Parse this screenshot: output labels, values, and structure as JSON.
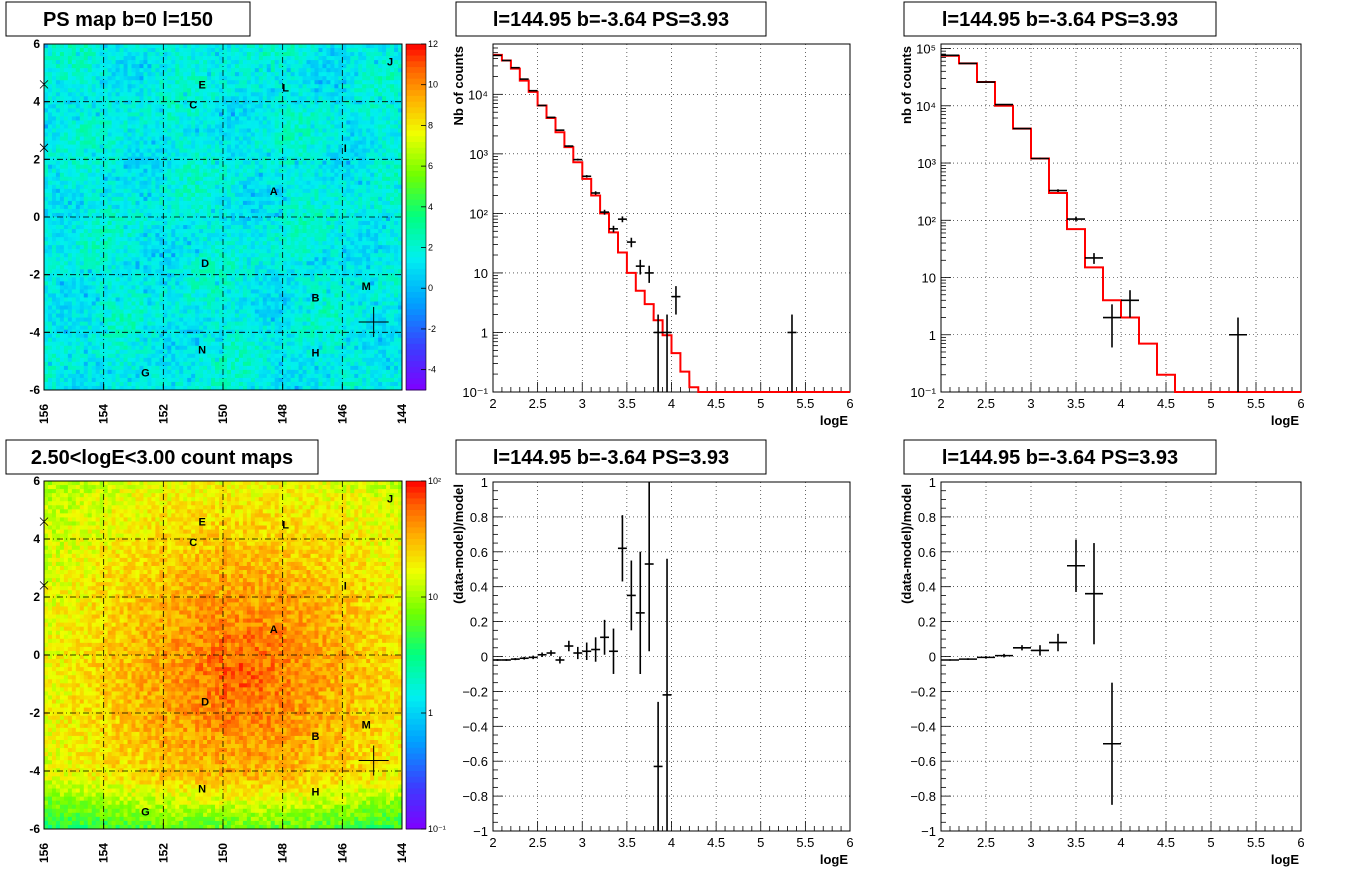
{
  "chart_data": [
    {
      "type": "heatmap",
      "title": "PS map b=0 l=150",
      "xlim": [
        156,
        144
      ],
      "ylim": [
        -6,
        6
      ],
      "x_ticks": [
        156,
        154,
        152,
        150,
        148,
        146,
        144
      ],
      "y_ticks": [
        -6,
        -4,
        -2,
        0,
        2,
        4,
        6
      ],
      "grid": true,
      "palette_axis": {
        "scale": "linear",
        "range": [
          -5,
          12
        ],
        "ticks": [
          -4,
          -2,
          0,
          2,
          4,
          6,
          8,
          10,
          12
        ]
      },
      "labels": [
        {
          "text": "A",
          "l": 148.3,
          "b": 0.9
        },
        {
          "text": "B",
          "l": 146.9,
          "b": -2.8
        },
        {
          "text": "C",
          "l": 151.0,
          "b": 3.9
        },
        {
          "text": "D",
          "l": 150.6,
          "b": -1.6
        },
        {
          "text": "E",
          "l": 150.7,
          "b": 4.6
        },
        {
          "text": "G",
          "l": 152.6,
          "b": -5.4
        },
        {
          "text": "H",
          "l": 146.9,
          "b": -4.7
        },
        {
          "text": "I",
          "l": 145.9,
          "b": 2.4
        },
        {
          "text": "J",
          "l": 144.4,
          "b": 5.4
        },
        {
          "text": "L",
          "l": 147.9,
          "b": 4.5
        },
        {
          "text": "M",
          "l": 145.2,
          "b": -2.4
        },
        {
          "text": "N",
          "l": 150.7,
          "b": -4.6
        }
      ],
      "source_marker": {
        "l": 144.95,
        "b": -3.64
      }
    },
    {
      "type": "line",
      "title": "l=144.95 b=-3.64 PS=3.93",
      "xlabel": "logE",
      "ylabel": "Nb of counts",
      "xlim": [
        2,
        6
      ],
      "ylim": [
        0.1,
        70000
      ],
      "yscale": "log",
      "x_ticks": [
        2,
        2.5,
        3,
        3.5,
        4,
        4.5,
        5,
        5.5,
        6
      ],
      "y_ticks": [
        0.1,
        1,
        10,
        100,
        1000,
        10000
      ],
      "y_tick_labels": [
        "10⁻¹",
        "1",
        "10",
        "10²",
        "10³",
        "10⁴"
      ],
      "grid": true,
      "series": [
        {
          "kind": "step",
          "color": "#ff0000",
          "bin_width": 0.1,
          "x": [
            2.0,
            2.1,
            2.2,
            2.3,
            2.4,
            2.5,
            2.6,
            2.7,
            2.8,
            2.9,
            3.0,
            3.1,
            3.2,
            3.3,
            3.4,
            3.5,
            3.6,
            3.7,
            3.8,
            3.9,
            4.0,
            4.1,
            4.2,
            4.3,
            4.4,
            4.5,
            4.6,
            4.7,
            4.8,
            4.9,
            5.0,
            5.1,
            5.2,
            5.3,
            5.4,
            5.5,
            5.6,
            5.7,
            5.8,
            5.9
          ],
          "values": [
            46000,
            37000,
            27000,
            17000,
            11000,
            6500,
            4000,
            2300,
            1300,
            720,
            380,
            200,
            100,
            48,
            22,
            10,
            5,
            3,
            1.6,
            0.9,
            0.45,
            0.22,
            0.12,
            0.1,
            0.1,
            0.1,
            0.1,
            0.1,
            0.1,
            0.1,
            0.1,
            0.1,
            0.1,
            0.1,
            0.1,
            0.1,
            0.1,
            0.1,
            0.1,
            0.1
          ]
        },
        {
          "kind": "errorbar",
          "color": "#000000",
          "x": [
            2.05,
            2.15,
            2.25,
            2.35,
            2.45,
            2.55,
            2.65,
            2.75,
            2.85,
            2.95,
            3.05,
            3.15,
            3.25,
            3.35,
            3.45,
            3.55,
            3.65,
            3.75,
            3.85,
            3.95,
            4.05,
            5.35
          ],
          "values": [
            45000,
            37000,
            28000,
            18000,
            11500,
            6500,
            4100,
            2500,
            1350,
            800,
            420,
            220,
            105,
            55,
            80,
            33,
            13,
            10,
            1,
            1,
            4,
            1
          ],
          "xerr": 0.05,
          "yerr_low": [
            212,
            192,
            167,
            134,
            107,
            81,
            64,
            50,
            37,
            28,
            20,
            15,
            10,
            7,
            9,
            6,
            3.6,
            3.2,
            1,
            1,
            2,
            1
          ],
          "yerr_high": [
            212,
            192,
            167,
            134,
            107,
            81,
            64,
            50,
            37,
            28,
            20,
            15,
            10,
            7,
            9,
            6,
            3.6,
            3.2,
            1,
            1,
            2,
            1
          ]
        }
      ]
    },
    {
      "type": "line",
      "title": "l=144.95 b=-3.64 PS=3.93",
      "xlabel": "logE",
      "ylabel": "nb of counts",
      "xlim": [
        2,
        6
      ],
      "ylim": [
        0.1,
        120000
      ],
      "yscale": "log",
      "x_ticks": [
        2,
        2.5,
        3,
        3.5,
        4,
        4.5,
        5,
        5.5,
        6
      ],
      "y_ticks": [
        0.1,
        1,
        10,
        100,
        1000,
        10000,
        100000
      ],
      "y_tick_labels": [
        "10⁻¹",
        "1",
        "10",
        "10²",
        "10³",
        "10⁴",
        "10⁵"
      ],
      "grid": true,
      "series": [
        {
          "kind": "step",
          "color": "#ff0000",
          "bin_width": 0.2,
          "x": [
            2.0,
            2.2,
            2.4,
            2.6,
            2.8,
            3.0,
            3.2,
            3.4,
            3.6,
            3.8,
            4.0,
            4.2,
            4.4,
            4.6,
            4.8,
            5.0,
            5.2,
            5.4,
            5.6,
            5.8
          ],
          "values": [
            75000,
            55000,
            26000,
            10000,
            4000,
            1200,
            300,
            70,
            15,
            4,
            2,
            0.7,
            0.2,
            0.1,
            0.1,
            0.1,
            0.1,
            0.1,
            0.1,
            0.1
          ]
        },
        {
          "kind": "errorbar",
          "color": "#000000",
          "x": [
            2.1,
            2.3,
            2.5,
            2.7,
            2.9,
            3.1,
            3.3,
            3.5,
            3.7,
            3.9,
            4.1,
            5.3
          ],
          "values": [
            76000,
            55000,
            26000,
            10500,
            4000,
            1200,
            330,
            105,
            22,
            2,
            4,
            1
          ],
          "xerr": 0.1,
          "yerr_low": [
            276,
            235,
            161,
            102,
            63,
            35,
            18,
            10,
            4.7,
            1.4,
            2,
            1
          ],
          "yerr_high": [
            276,
            235,
            161,
            102,
            63,
            35,
            18,
            10,
            4.7,
            1.4,
            2,
            1
          ]
        }
      ]
    },
    {
      "type": "heatmap",
      "title": "2.50<logE<3.00 count maps",
      "xlim": [
        156,
        144
      ],
      "ylim": [
        -6,
        6
      ],
      "x_ticks": [
        156,
        154,
        152,
        150,
        148,
        146,
        144
      ],
      "y_ticks": [
        -6,
        -4,
        -2,
        0,
        2,
        4,
        6
      ],
      "grid": true,
      "palette_axis": {
        "scale": "log",
        "range": [
          0.1,
          100
        ],
        "ticks": [
          0.1,
          1,
          10,
          100
        ],
        "tick_labels": [
          "10⁻¹",
          "1",
          "10",
          "10²"
        ]
      },
      "labels": [
        {
          "text": "A",
          "l": 148.3,
          "b": 0.9
        },
        {
          "text": "B",
          "l": 146.9,
          "b": -2.8
        },
        {
          "text": "C",
          "l": 151.0,
          "b": 3.9
        },
        {
          "text": "D",
          "l": 150.6,
          "b": -1.6
        },
        {
          "text": "E",
          "l": 150.7,
          "b": 4.6
        },
        {
          "text": "G",
          "l": 152.6,
          "b": -5.4
        },
        {
          "text": "H",
          "l": 146.9,
          "b": -4.7
        },
        {
          "text": "I",
          "l": 145.9,
          "b": 2.4
        },
        {
          "text": "J",
          "l": 144.4,
          "b": 5.4
        },
        {
          "text": "L",
          "l": 147.9,
          "b": 4.5
        },
        {
          "text": "M",
          "l": 145.2,
          "b": -2.4
        },
        {
          "text": "N",
          "l": 150.7,
          "b": -4.6
        }
      ],
      "source_marker": {
        "l": 144.95,
        "b": -3.64
      }
    },
    {
      "type": "scatter",
      "title": "l=144.95 b=-3.64 PS=3.93",
      "xlabel": "logE",
      "ylabel": "(data-model)/model",
      "xlim": [
        2,
        6
      ],
      "ylim": [
        -1,
        1
      ],
      "x_ticks": [
        2,
        2.5,
        3,
        3.5,
        4,
        4.5,
        5,
        5.5,
        6
      ],
      "y_ticks": [
        -1,
        -0.8,
        -0.6,
        -0.4,
        -0.2,
        0,
        0.2,
        0.4,
        0.6,
        0.8,
        1
      ],
      "y_tick_labels": [
        "−1",
        "−0.8",
        "−0.6",
        "−0.4",
        "−0.2",
        "0",
        "0.2",
        "0.4",
        "0.6",
        "0.8",
        "1"
      ],
      "grid": true,
      "series": [
        {
          "kind": "errorbar",
          "color": "#000000",
          "x": [
            2.05,
            2.15,
            2.25,
            2.35,
            2.45,
            2.55,
            2.65,
            2.75,
            2.85,
            2.95,
            3.05,
            3.15,
            3.25,
            3.35,
            3.45,
            3.55,
            3.65,
            3.75,
            3.85,
            3.95
          ],
          "values": [
            -0.02,
            -0.02,
            -0.015,
            -0.01,
            -0.005,
            0.01,
            0.02,
            -0.02,
            0.06,
            0.02,
            0.03,
            0.04,
            0.11,
            0.03,
            0.62,
            0.35,
            0.25,
            0.53,
            -0.63,
            -0.22
          ],
          "xerr": 0.05,
          "yerr": [
            0.005,
            0.005,
            0.006,
            0.008,
            0.01,
            0.013,
            0.016,
            0.02,
            0.03,
            0.035,
            0.05,
            0.07,
            0.1,
            0.13,
            0.19,
            0.2,
            0.35,
            0.5,
            0.37,
            0.78
          ]
        }
      ]
    },
    {
      "type": "scatter",
      "title": "l=144.95 b=-3.64 PS=3.93",
      "xlabel": "logE",
      "ylabel": "(data-model)/model",
      "xlim": [
        2,
        6
      ],
      "ylim": [
        -1,
        1
      ],
      "x_ticks": [
        2,
        2.5,
        3,
        3.5,
        4,
        4.5,
        5,
        5.5,
        6
      ],
      "y_ticks": [
        -1,
        -0.8,
        -0.6,
        -0.4,
        -0.2,
        0,
        0.2,
        0.4,
        0.6,
        0.8,
        1
      ],
      "y_tick_labels": [
        "−1",
        "−0.8",
        "−0.6",
        "−0.4",
        "−0.2",
        "0",
        "0.2",
        "0.4",
        "0.6",
        "0.8",
        "1"
      ],
      "grid": true,
      "series": [
        {
          "kind": "errorbar",
          "color": "#000000",
          "x": [
            2.1,
            2.3,
            2.5,
            2.7,
            2.9,
            3.1,
            3.3,
            3.5,
            3.7,
            3.9
          ],
          "values": [
            -0.02,
            -0.015,
            -0.005,
            0.005,
            0.05,
            0.035,
            0.08,
            0.52,
            0.36,
            -0.5
          ],
          "xerr": 0.1,
          "yerr": [
            0.004,
            0.005,
            0.007,
            0.01,
            0.015,
            0.03,
            0.05,
            0.15,
            0.29,
            0.35
          ]
        }
      ]
    }
  ]
}
